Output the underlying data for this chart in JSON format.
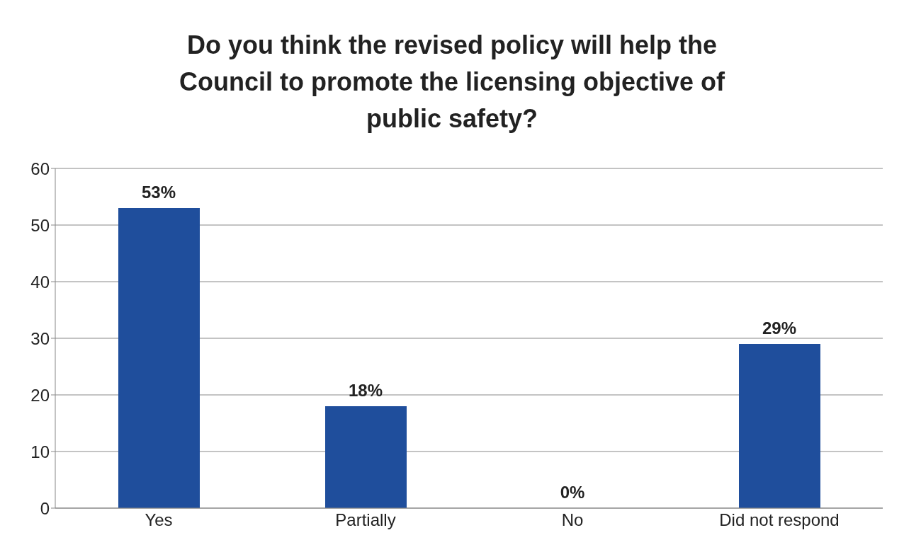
{
  "chart_data": {
    "type": "bar",
    "title": "Do you think the revised policy will help the Council to promote the licensing objective of public safety?",
    "categories": [
      "Yes",
      "Partially",
      "No",
      "Did not respond"
    ],
    "values": [
      53,
      18,
      0,
      29
    ],
    "value_labels": [
      "53%",
      "18%",
      "0%",
      "29%"
    ],
    "color": "#1f4e9c",
    "ylim": [
      0,
      60
    ],
    "yticks": [
      0,
      10,
      20,
      30,
      40,
      50,
      60
    ],
    "grid": "y"
  }
}
